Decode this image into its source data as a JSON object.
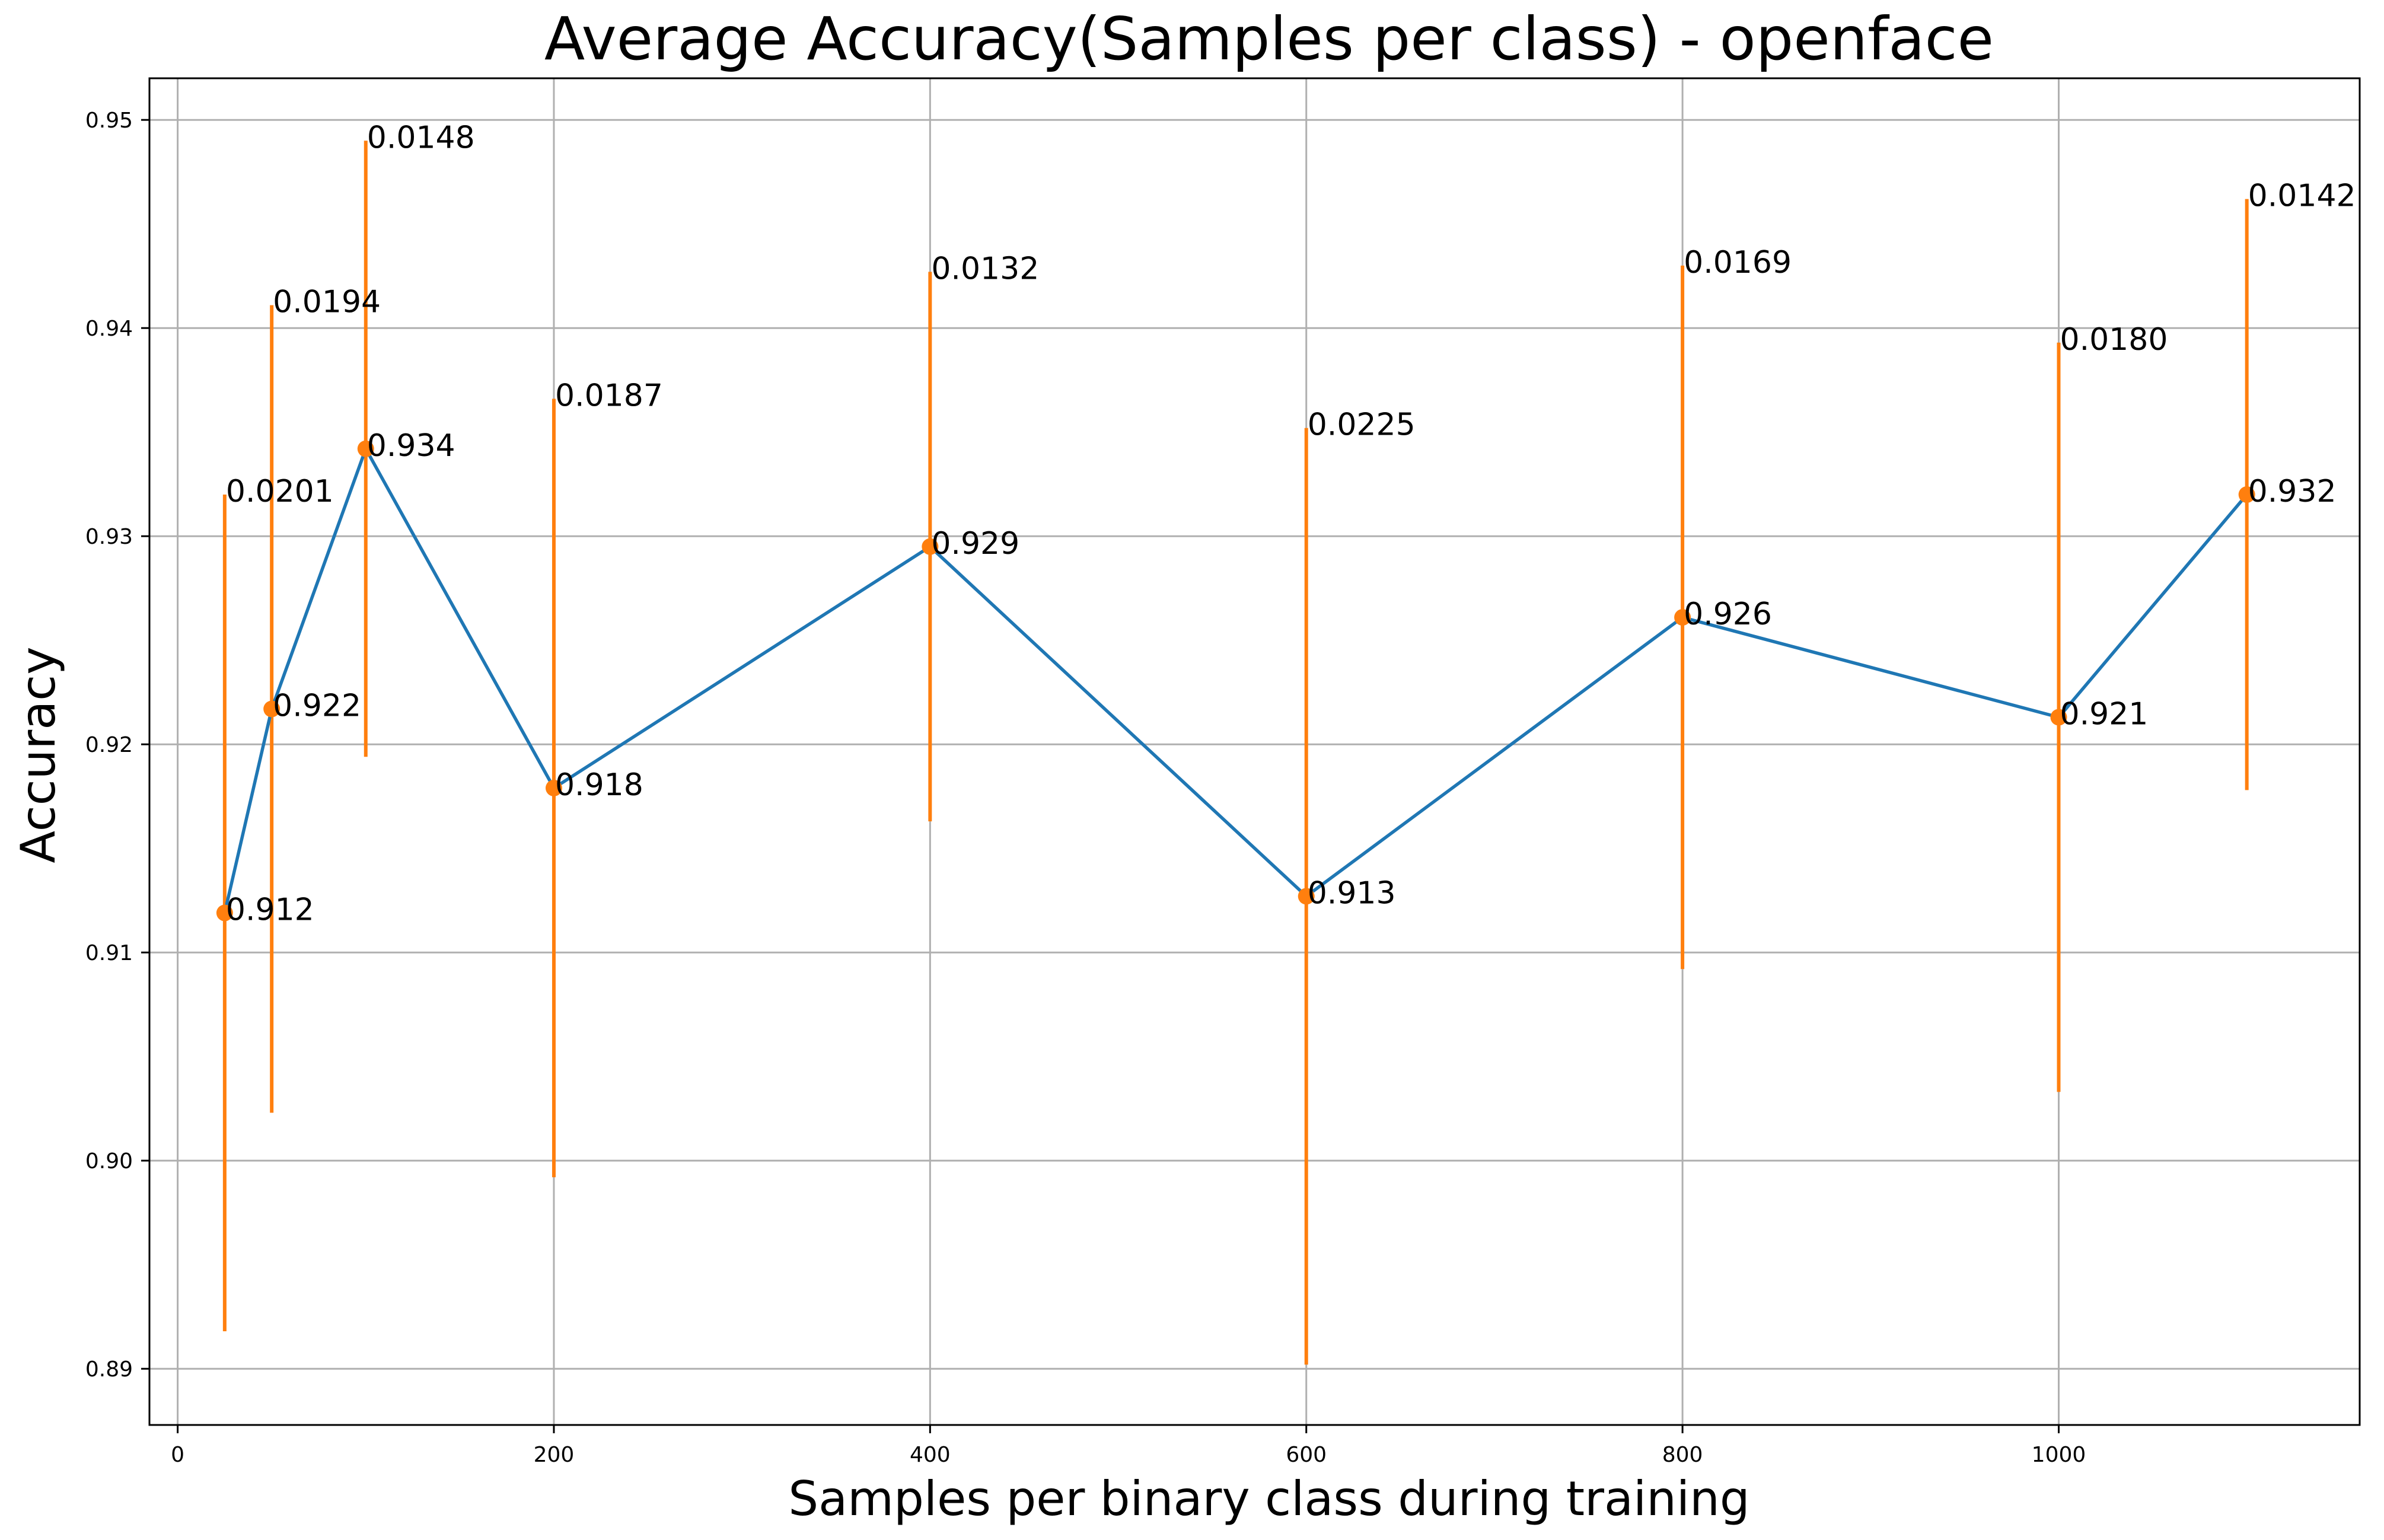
{
  "chart_data": {
    "type": "line",
    "title": "Average Accuracy(Samples per class) - openface",
    "xlabel": "Samples per binary class during training",
    "ylabel": "Accuracy",
    "xlim": [
      -15,
      1160
    ],
    "ylim": [
      0.8873,
      0.952
    ],
    "x_ticks": [
      0,
      200,
      400,
      600,
      800,
      1000
    ],
    "y_ticks": [
      0.89,
      0.9,
      0.91,
      0.92,
      0.93,
      0.94,
      0.95
    ],
    "x_tick_labels": [
      "0",
      "200",
      "400",
      "600",
      "800",
      "1000"
    ],
    "y_tick_labels": [
      "0.89",
      "0.90",
      "0.91",
      "0.92",
      "0.93",
      "0.94",
      "0.95"
    ],
    "grid": true,
    "series": [
      {
        "x": [
          25,
          50,
          100,
          200,
          400,
          600,
          800,
          1000,
          1100
        ],
        "values": [
          0.9119,
          0.9217,
          0.9342,
          0.9179,
          0.9295,
          0.9127,
          0.9261,
          0.9213,
          0.932
        ],
        "errors": [
          0.0201,
          0.0194,
          0.0148,
          0.0187,
          0.0132,
          0.0225,
          0.0169,
          0.018,
          0.0142
        ],
        "value_labels": [
          "0.912",
          "0.922",
          "0.934",
          "0.918",
          "0.929",
          "0.913",
          "0.926",
          "0.921",
          "0.932"
        ],
        "error_labels": [
          "0.0201",
          "0.0194",
          "0.0148",
          "0.0187",
          "0.0132",
          "0.0225",
          "0.0169",
          "0.0180",
          "0.0142"
        ]
      }
    ],
    "colors": {
      "line": "#1f77b4",
      "errorbar": "#ff7f0e",
      "marker": "#ff7f0e",
      "grid": "#b0b0b0"
    }
  }
}
